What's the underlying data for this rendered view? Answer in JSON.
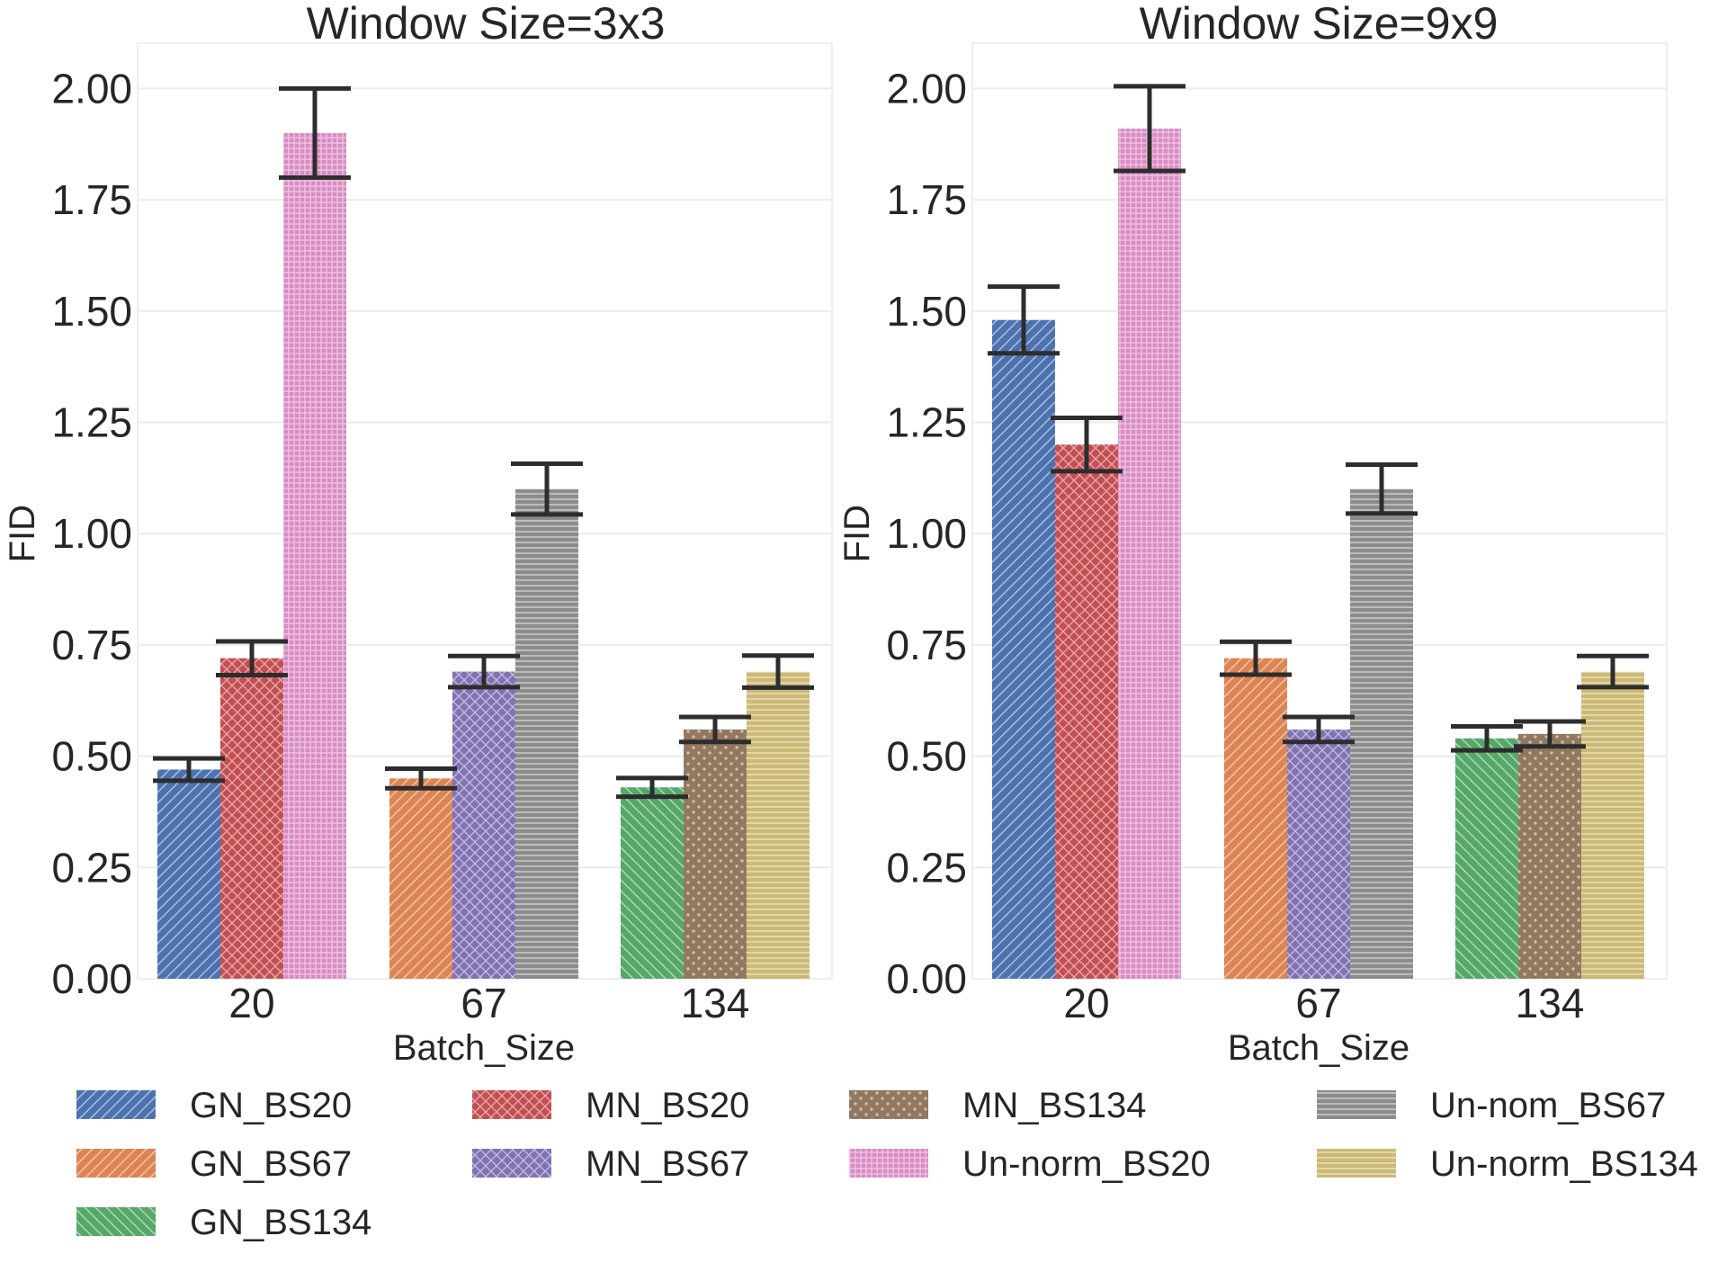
{
  "chart_data": [
    {
      "type": "bar",
      "title": "Window Size=3x3",
      "xlabel": "Batch_Size",
      "ylabel": "FID",
      "ylim": [
        0,
        2.1
      ],
      "yticks": [
        "0.00",
        "0.25",
        "0.50",
        "0.75",
        "1.00",
        "1.25",
        "1.50",
        "1.75",
        "2.00"
      ],
      "categories": [
        "20",
        "67",
        "134"
      ],
      "groups": [
        {
          "category": "20",
          "bars": [
            {
              "series": "GN_BS20",
              "value": 0.47,
              "err": 0.025
            },
            {
              "series": "MN_BS20",
              "value": 0.72,
              "err": 0.038
            },
            {
              "series": "Un-norm_BS20",
              "value": 1.9,
              "err": 0.1
            }
          ]
        },
        {
          "category": "67",
          "bars": [
            {
              "series": "GN_BS67",
              "value": 0.45,
              "err": 0.022
            },
            {
              "series": "MN_BS67",
              "value": 0.69,
              "err": 0.035
            },
            {
              "series": "Un-nom_BS67",
              "value": 1.1,
              "err": 0.057
            }
          ]
        },
        {
          "category": "134",
          "bars": [
            {
              "series": "GN_BS134",
              "value": 0.43,
              "err": 0.021
            },
            {
              "series": "MN_BS134",
              "value": 0.56,
              "err": 0.028
            },
            {
              "series": "Un-norm_BS134",
              "value": 0.69,
              "err": 0.036
            }
          ]
        }
      ]
    },
    {
      "type": "bar",
      "title": "Window Size=9x9",
      "xlabel": "Batch_Size",
      "ylabel": "FID",
      "ylim": [
        0,
        2.1
      ],
      "yticks": [
        "0.00",
        "0.25",
        "0.50",
        "0.75",
        "1.00",
        "1.25",
        "1.50",
        "1.75",
        "2.00"
      ],
      "categories": [
        "20",
        "67",
        "134"
      ],
      "groups": [
        {
          "category": "20",
          "bars": [
            {
              "series": "GN_BS20",
              "value": 1.48,
              "err": 0.075
            },
            {
              "series": "MN_BS20",
              "value": 1.2,
              "err": 0.06
            },
            {
              "series": "Un-norm_BS20",
              "value": 1.91,
              "err": 0.095
            }
          ]
        },
        {
          "category": "67",
          "bars": [
            {
              "series": "GN_BS67",
              "value": 0.72,
              "err": 0.037
            },
            {
              "series": "MN_BS67",
              "value": 0.56,
              "err": 0.028
            },
            {
              "series": "Un-nom_BS67",
              "value": 1.1,
              "err": 0.055
            }
          ]
        },
        {
          "category": "134",
          "bars": [
            {
              "series": "GN_BS134",
              "value": 0.54,
              "err": 0.027
            },
            {
              "series": "MN_BS134",
              "value": 0.55,
              "err": 0.028
            },
            {
              "series": "Un-norm_BS134",
              "value": 0.69,
              "err": 0.035
            }
          ]
        }
      ]
    }
  ],
  "series_styles": {
    "GN_BS20": {
      "color": "#4c72b0",
      "icon": "diagonal-hatch"
    },
    "GN_BS67": {
      "color": "#dd8452",
      "icon": "diagonal-hatch"
    },
    "GN_BS134": {
      "color": "#55a868",
      "icon": "back-diagonal-hatch"
    },
    "MN_BS20": {
      "color": "#c44e52",
      "icon": "crosshatch"
    },
    "MN_BS67": {
      "color": "#8172b3",
      "icon": "crosshatch"
    },
    "MN_BS134": {
      "color": "#937860",
      "icon": "dots"
    },
    "Un-norm_BS20": {
      "color": "#da8bc3",
      "icon": "grid"
    },
    "Un-nom_BS67": {
      "color": "#8c8c8c",
      "icon": "horizontal-lines"
    },
    "Un-norm_BS134": {
      "color": "#ccb974",
      "icon": "horizontal-lines"
    }
  },
  "legend": [
    "GN_BS20",
    "MN_BS20",
    "MN_BS134",
    "Un-nom_BS67",
    "GN_BS67",
    "MN_BS67",
    "Un-norm_BS20",
    "Un-norm_BS134",
    "GN_BS134"
  ]
}
